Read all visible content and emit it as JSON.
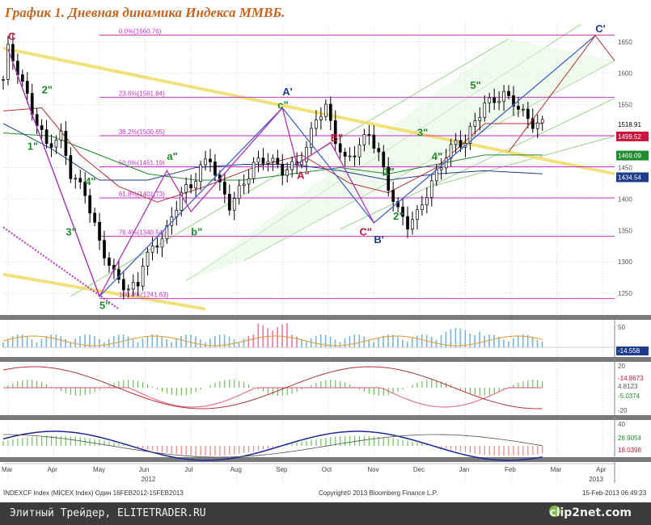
{
  "title": "График 1.   Дневная динамика Индекса ММВБ.",
  "chart_data": {
    "type": "candlestick",
    "xlabel": "",
    "ylabel": "",
    "x_ticks": [
      "Mar",
      "Apr",
      "May",
      "Jun",
      "Jul",
      "Aug",
      "Sep",
      "Oct",
      "Nov",
      "Dec",
      "Jan",
      "Feb",
      "Mar",
      "Apr"
    ],
    "x_years": [
      "2012",
      "2013"
    ],
    "y_ticks": [
      1250,
      1300,
      1350,
      1400,
      1450,
      1500,
      1550,
      1600,
      1650
    ],
    "ylim": [
      1218,
      1678
    ],
    "series": [
      {
        "name": "price",
        "values": [
          [
            0,
            1590
          ],
          [
            1,
            1638
          ],
          [
            3,
            1605
          ],
          [
            6,
            1540
          ],
          [
            9,
            1485
          ],
          [
            12,
            1500
          ],
          [
            14,
            1440
          ],
          [
            17,
            1410
          ],
          [
            20,
            1330
          ],
          [
            23,
            1280
          ],
          [
            26,
            1255
          ],
          [
            28,
            1265
          ],
          [
            29,
            1300
          ],
          [
            32,
            1330
          ],
          [
            34,
            1350
          ],
          [
            37,
            1410
          ],
          [
            39,
            1420
          ],
          [
            41,
            1450
          ],
          [
            43,
            1465
          ],
          [
            45,
            1420
          ],
          [
            47,
            1390
          ],
          [
            50,
            1425
          ],
          [
            52,
            1455
          ],
          [
            55,
            1465
          ],
          [
            58,
            1445
          ],
          [
            61,
            1455
          ],
          [
            63,
            1480
          ],
          [
            65,
            1530
          ],
          [
            67,
            1545
          ],
          [
            69,
            1495
          ],
          [
            71,
            1460
          ],
          [
            73,
            1475
          ],
          [
            75,
            1495
          ],
          [
            76,
            1505
          ],
          [
            78,
            1470
          ],
          [
            80,
            1420
          ],
          [
            82,
            1380
          ],
          [
            84,
            1360
          ],
          [
            86,
            1375
          ],
          [
            88,
            1410
          ],
          [
            90,
            1440
          ],
          [
            92,
            1470
          ],
          [
            94,
            1490
          ],
          [
            96,
            1490
          ],
          [
            98,
            1525
          ],
          [
            100,
            1550
          ],
          [
            102,
            1558
          ],
          [
            104,
            1565
          ],
          [
            106,
            1555
          ],
          [
            108,
            1535
          ],
          [
            110,
            1520
          ],
          [
            112,
            1519
          ]
        ]
      }
    ],
    "last_price": "1518.91",
    "right_labels": [
      {
        "value": 1499.52,
        "text": "1499.52",
        "color": "#c8143c"
      },
      {
        "value": 1469.09,
        "text": "1469.09",
        "color": "#1e8c2d"
      },
      {
        "value": 1434.54,
        "text": "1434.54",
        "color": "#1e3c8c"
      }
    ],
    "fibonacci": [
      {
        "label": "0.0%(1660.76)",
        "value": 1660.76
      },
      {
        "label": "23.6%(1561.84)",
        "value": 1561.84
      },
      {
        "label": "38.2%(1500.65)",
        "value": 1500.65
      },
      {
        "label": "50.0%(1451.19)",
        "value": 1451.19
      },
      {
        "label": "61.8%(1401.73)",
        "value": 1401.73
      },
      {
        "label": "76.4%(1340.54)",
        "value": 1340.54
      },
      {
        "label": "100.0%(1241.63)",
        "value": 1241.63
      }
    ],
    "wave_labels": [
      {
        "text": "C",
        "x": 1,
        "y": 1653,
        "color": "#c8143c"
      },
      {
        "text": "2\"",
        "x": 8,
        "y": 1568,
        "color": "#1e8c2d"
      },
      {
        "text": "1\"",
        "x": 5,
        "y": 1478,
        "color": "#1e8c2d"
      },
      {
        "text": "4\"",
        "x": 17,
        "y": 1422,
        "color": "#1e8c2d"
      },
      {
        "text": "3\"",
        "x": 13,
        "y": 1342,
        "color": "#1e8c2d"
      },
      {
        "text": "5\"",
        "x": 20,
        "y": 1225,
        "color": "#1e8c2d"
      },
      {
        "text": "a\"",
        "x": 34,
        "y": 1462,
        "color": "#1e8c2d"
      },
      {
        "text": "b\"",
        "x": 39,
        "y": 1342,
        "color": "#1e8c2d"
      },
      {
        "text": "A'",
        "x": 58,
        "y": 1565,
        "color": "#1e3c8c"
      },
      {
        "text": "c\"",
        "x": 57,
        "y": 1544,
        "color": "#1e8c2d"
      },
      {
        "text": "B\"",
        "x": 68,
        "y": 1492,
        "color": "#c8143c"
      },
      {
        "text": "A\"",
        "x": 61,
        "y": 1432,
        "color": "#c8143c"
      },
      {
        "text": "1\"",
        "x": 79,
        "y": 1438,
        "color": "#1e8c2d"
      },
      {
        "text": "2\"",
        "x": 81,
        "y": 1367,
        "color": "#1e8c2d"
      },
      {
        "text": "C\"",
        "x": 74,
        "y": 1342,
        "color": "#c8143c"
      },
      {
        "text": "B'",
        "x": 77,
        "y": 1330,
        "color": "#1e3c8c"
      },
      {
        "text": "3\"",
        "x": 86,
        "y": 1500,
        "color": "#1e8c2d"
      },
      {
        "text": "4\"",
        "x": 89,
        "y": 1462,
        "color": "#1e8c2d"
      },
      {
        "text": "5\"",
        "x": 97,
        "y": 1575,
        "color": "#1e8c2d"
      },
      {
        "text": "C'",
        "x": 123,
        "y": 1665,
        "color": "#1e3c8c"
      }
    ],
    "indicator_ticks": {
      "panel1": [
        "50",
        "-14.558"
      ],
      "panel2": [
        "20",
        "-14.8673",
        "4.8123",
        "-5.0374",
        "-20"
      ],
      "panel3": [
        "40",
        "28.9054",
        "18.0398"
      ]
    }
  },
  "footer_text": {
    "left": "INDEXCF Index (MICEX Index) Один 16FEB2012-15FEB2013",
    "center": "Copyright© 2013 Bloomberg Finance L.P.",
    "right": "15-Feb-2013 06:49:23"
  },
  "watermark": {
    "site": "Элитный Трейдер, ELITETRADER.RU",
    "brand": "clip2net.com"
  },
  "colors": {
    "fib": "#c832c8",
    "candles": "#000000",
    "channel": "#96d28c",
    "yellow_line": "#f0dc64",
    "wave_blue": "#4664c8",
    "wave_red": "#b43232"
  }
}
